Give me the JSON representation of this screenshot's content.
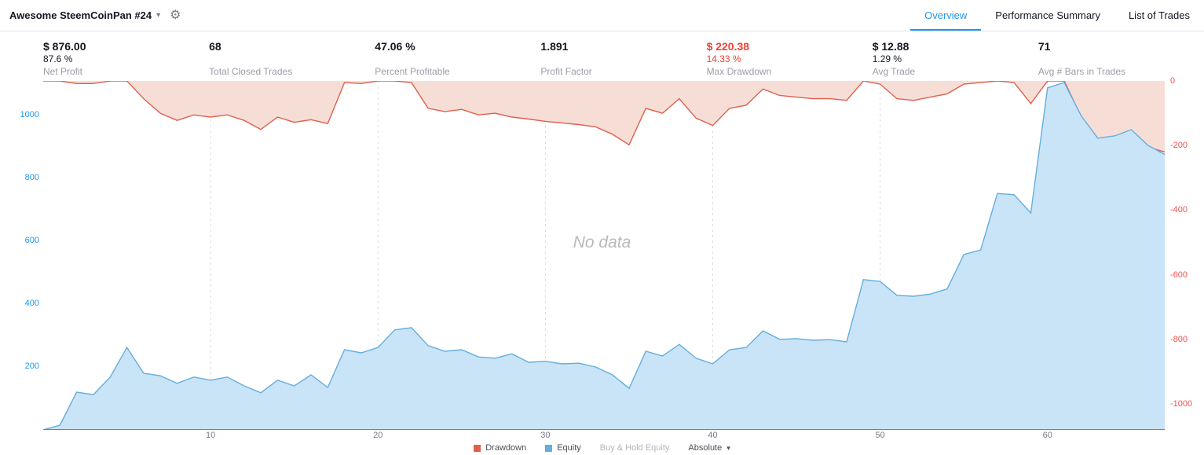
{
  "topbar": {
    "title": "Awesome SteemCoinPan #24",
    "tabs": [
      {
        "label": "Overview",
        "active": true
      },
      {
        "label": "Performance Summary",
        "active": false
      },
      {
        "label": "List of Trades",
        "active": false
      }
    ]
  },
  "stats": [
    {
      "value": "$ 876.00",
      "sub": "87.6 %",
      "label": "Net Profit"
    },
    {
      "value": "68",
      "sub": "",
      "label": "Total Closed Trades"
    },
    {
      "value": "47.06 %",
      "sub": "",
      "label": "Percent Profitable"
    },
    {
      "value": "1.891",
      "sub": "",
      "label": "Profit Factor"
    },
    {
      "value": "$ 220.38",
      "sub": "14.33 %",
      "label": "Max Drawdown"
    },
    {
      "value": "$ 12.88",
      "sub": "1.29 %",
      "label": "Avg Trade"
    },
    {
      "value": "71",
      "sub": "",
      "label": "Avg # Bars in Trades"
    }
  ],
  "colors": {
    "accent_blue": "#2196f3",
    "negative_red": "#f0402f",
    "muted_gray": "#9b9ea6"
  },
  "chart": {
    "no_data_text": "No data",
    "legend": [
      {
        "label": "Drawdown"
      },
      {
        "label": "Equity"
      },
      {
        "label": "Buy & Hold Equity"
      },
      {
        "label": "Absolute"
      }
    ]
  },
  "chart_data": {
    "type": "area",
    "title": "Strategy equity and drawdown curves (trade number on x-axis)",
    "grid_color": "#dadce2",
    "x_axis": {
      "ticks": [
        10,
        20,
        30,
        40,
        50,
        60
      ],
      "range": [
        0,
        67
      ],
      "label_color": "#787b86"
    },
    "left_axis": {
      "ticks": [
        200,
        400,
        600,
        800,
        1000
      ],
      "range": [
        0,
        1110
      ],
      "color": "#2196f3"
    },
    "right_axis": {
      "ticks": [
        0,
        -200,
        -400,
        -600,
        -800,
        -1000
      ],
      "range": [
        0,
        -1080
      ],
      "color": "#ef5350"
    },
    "x": [
      0,
      1,
      2,
      3,
      4,
      5,
      6,
      7,
      8,
      9,
      10,
      11,
      12,
      13,
      14,
      15,
      16,
      17,
      18,
      19,
      20,
      21,
      22,
      23,
      24,
      25,
      26,
      27,
      28,
      29,
      30,
      31,
      32,
      33,
      34,
      35,
      36,
      37,
      38,
      39,
      40,
      41,
      42,
      43,
      44,
      45,
      46,
      47,
      48,
      49,
      50,
      51,
      52,
      53,
      54,
      55,
      56,
      57,
      58,
      59,
      60,
      61,
      62,
      63,
      64,
      65,
      66,
      67
    ],
    "series": [
      {
        "name": "Equity",
        "axis": "left",
        "color": "#64aede",
        "fill": "#c9e4f6",
        "values": [
          0,
          15,
          120,
          112,
          168,
          262,
          180,
          172,
          148,
          168,
          158,
          168,
          140,
          118,
          158,
          140,
          175,
          135,
          255,
          245,
          262,
          318,
          325,
          268,
          250,
          255,
          232,
          228,
          242,
          215,
          218,
          210,
          212,
          200,
          175,
          132,
          250,
          235,
          272,
          228,
          210,
          255,
          262,
          315,
          288,
          290,
          285,
          287,
          280,
          478,
          472,
          428,
          425,
          432,
          448,
          558,
          572,
          752,
          748,
          690,
          1088,
          1105,
          1000,
          928,
          935,
          955,
          905,
          876
        ]
      },
      {
        "name": "Drawdown",
        "axis": "right",
        "color": "#e0604c",
        "fill": "#f6ded7",
        "values": [
          0,
          0,
          -8,
          -8,
          0,
          0,
          -55,
          -100,
          -122,
          -105,
          -112,
          -105,
          -122,
          -150,
          -112,
          -128,
          -120,
          -132,
          -5,
          -8,
          0,
          0,
          -5,
          -85,
          -95,
          -88,
          -105,
          -100,
          -112,
          -118,
          -125,
          -130,
          -135,
          -142,
          -165,
          -198,
          -85,
          -100,
          -55,
          -115,
          -138,
          -85,
          -75,
          -25,
          -45,
          -50,
          -55,
          -55,
          -60,
          0,
          -10,
          -55,
          -60,
          -50,
          -40,
          -10,
          -5,
          0,
          -5,
          -70,
          0,
          0,
          -110,
          -180,
          -175,
          -155,
          -205,
          -220
        ]
      }
    ]
  }
}
